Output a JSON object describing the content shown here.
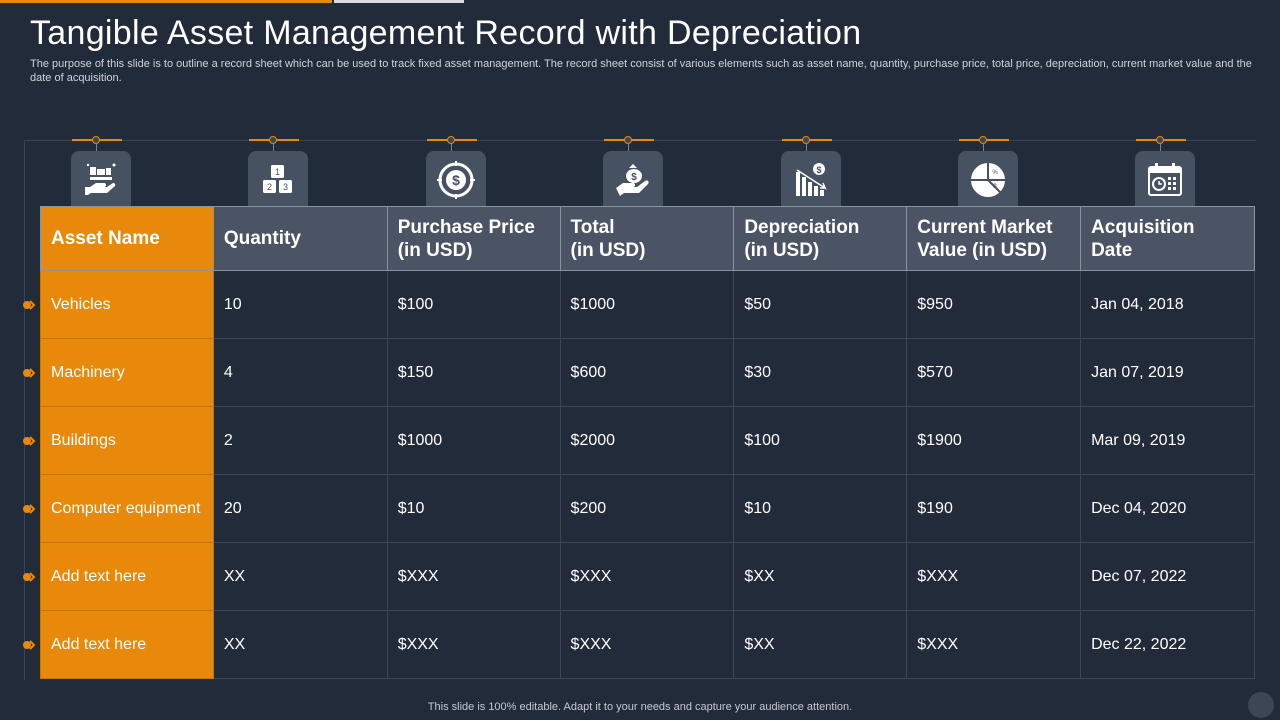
{
  "slide": {
    "title": "Tangible Asset Management Record with Depreciation",
    "subtitle": "The purpose of this slide is to outline a record sheet which can be used to track fixed  asset management. The record sheet consist of various elements such as asset name, quantity, purchase price, total price, depreciation, current market value and the date of acquisition.",
    "footer": "This slide is 100% editable. Adapt it to your  needs and capture your audience attention."
  },
  "colors": {
    "background": "#222b3a",
    "accent": "#e8890c",
    "header_cell": "#4a5465",
    "icon_box": "#465162"
  },
  "icons": [
    "asset-hand-icon",
    "numbered-blocks-icon",
    "dollar-coin-icon",
    "money-bag-hand-icon",
    "declining-chart-dollar-icon",
    "pie-chart-icon",
    "calendar-clock-icon"
  ],
  "table": {
    "headers": [
      "Asset Name",
      "Quantity",
      "Purchase Price\n(in USD)",
      "Total\n(in USD)",
      "Depreciation\n(in USD)",
      "Current Market\nValue (in USD)",
      "Acquisition\nDate"
    ],
    "rows": [
      [
        "Vehicles",
        "10",
        "$100",
        "$1000",
        "$50",
        "$950",
        "Jan 04, 2018"
      ],
      [
        "Machinery",
        "4",
        "$150",
        "$600",
        "$30",
        "$570",
        "Jan 07, 2019"
      ],
      [
        "Buildings",
        "2",
        "$1000",
        "$2000",
        "$100",
        "$1900",
        "Mar 09, 2019"
      ],
      [
        "Computer equipment",
        "20",
        "$10",
        "$200",
        "$10",
        "$190",
        "Dec 04, 2020"
      ],
      [
        "Add text here",
        "XX",
        "$XXX",
        "$XXX",
        "$XX",
        "$XXX",
        "Dec 07, 2022"
      ],
      [
        "Add text here",
        "XX",
        "$XXX",
        "$XXX",
        "$XX",
        "$XXX",
        "Dec 22, 2022"
      ]
    ]
  }
}
